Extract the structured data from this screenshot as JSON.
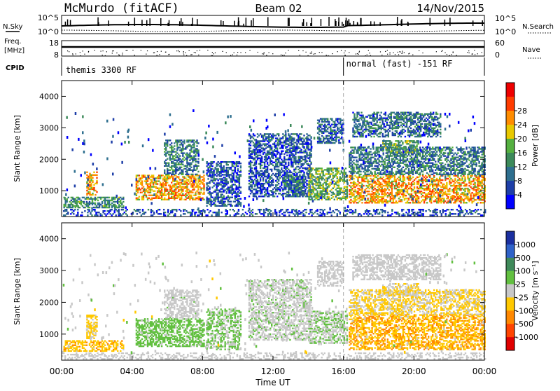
{
  "header": {
    "station": "McMurdo (fitACF)",
    "beam": "Beam 02",
    "date": "14/Nov/2015"
  },
  "top_panels": {
    "n_sky_label": "N.Sky",
    "n_search_label": "N.Search",
    "n_ticks": [
      "10^5",
      "10^0"
    ],
    "n_ticks_right": [
      "10^5",
      "10^0"
    ],
    "freq_label_1": "Freq.",
    "freq_label_2": "[MHz]",
    "freq_ticks": [
      "18",
      "8"
    ],
    "nave_label": "Nave",
    "nave_ticks": [
      "60",
      "0"
    ],
    "cpid_label": "CPID",
    "cpid_modes": [
      {
        "name": "themis 3300 RF",
        "start_hour": 0
      },
      {
        "name": "normal (fast) -151 RF",
        "start_hour": 16
      }
    ]
  },
  "x_axis": {
    "label": "Time UT",
    "ticks": [
      "00:00",
      "04:00",
      "08:00",
      "12:00",
      "16:00",
      "20:00",
      "00:00"
    ],
    "range_hours": [
      0,
      24
    ],
    "mode_change_hour": 16
  },
  "chart_data": [
    {
      "type": "heatmap",
      "name": "power",
      "ylabel": "Slant Range [km]",
      "yticks": [
        "1000",
        "2000",
        "3000",
        "4000"
      ],
      "ylim": [
        180,
        4500
      ],
      "colorbar_label": "Power [dB]",
      "colorbar_ticks": [
        "4",
        "8",
        "12",
        "16",
        "20",
        "24",
        "28"
      ],
      "colorbar_colors": [
        "#0000ff",
        "#1e3fa8",
        "#2e6f8f",
        "#3c8a5a",
        "#55b040",
        "#e8c800",
        "#ff8c00",
        "#ff3c00",
        "#ee0000"
      ],
      "colorbar_range": [
        0,
        32
      ],
      "regions": [
        {
          "t0": 0.1,
          "t1": 3.5,
          "r0": 450,
          "r1": 800,
          "level": 12
        },
        {
          "t0": 1.4,
          "t1": 2.0,
          "r0": 850,
          "r1": 1600,
          "level": 22
        },
        {
          "t0": 4.2,
          "t1": 8.1,
          "r0": 700,
          "r1": 1500,
          "level": 22
        },
        {
          "t0": 5.8,
          "t1": 7.8,
          "r0": 1500,
          "r1": 2600,
          "level": 10
        },
        {
          "t0": 8.2,
          "t1": 10.2,
          "r0": 500,
          "r1": 1900,
          "level": 7
        },
        {
          "t0": 10.6,
          "t1": 14.2,
          "r0": 800,
          "r1": 2800,
          "level": 7
        },
        {
          "t0": 12.6,
          "t1": 13.8,
          "r0": 800,
          "r1": 1500,
          "level": 10
        },
        {
          "t0": 14.0,
          "t1": 16.2,
          "r0": 700,
          "r1": 1700,
          "level": 15
        },
        {
          "t0": 14.5,
          "t1": 16.0,
          "r0": 2500,
          "r1": 3300,
          "level": 8
        },
        {
          "t0": 16.3,
          "t1": 24.0,
          "r0": 600,
          "r1": 1500,
          "level": 22
        },
        {
          "t0": 16.3,
          "t1": 24.0,
          "r0": 1500,
          "r1": 2400,
          "level": 10
        },
        {
          "t0": 18.2,
          "t1": 20.2,
          "r0": 2200,
          "r1": 2600,
          "level": 14
        },
        {
          "t0": 16.5,
          "t1": 21.5,
          "r0": 2700,
          "r1": 3500,
          "level": 9
        },
        {
          "t0": 0.0,
          "t1": 24.0,
          "r0": 200,
          "r1": 420,
          "level": 6
        }
      ]
    },
    {
      "type": "heatmap",
      "name": "velocity",
      "ylabel": "Slant Range [km]",
      "yticks": [
        "1000",
        "2000",
        "3000",
        "4000"
      ],
      "ylim": [
        180,
        4500
      ],
      "colorbar_label": "Velocity [m s⁻¹]",
      "colorbar_ticks": [
        "1000",
        "500",
        "100",
        "25",
        "-25",
        "-100",
        "-500",
        "-1000"
      ],
      "colorbar_colors": [
        "#1b2fa0",
        "#2f62c8",
        "#3f8a5a",
        "#62c040",
        "#c8c8c8",
        "#ffc800",
        "#ff8800",
        "#ff4400",
        "#e00000"
      ],
      "colorbar_range": [
        -1200,
        1200
      ],
      "regions": [
        {
          "t0": 0.1,
          "t1": 3.5,
          "r0": 450,
          "r1": 800,
          "level": -300
        },
        {
          "t0": 1.4,
          "t1": 2.0,
          "r0": 850,
          "r1": 1600,
          "level": -200
        },
        {
          "t0": 4.2,
          "t1": 8.1,
          "r0": 600,
          "r1": 1500,
          "level": 250
        },
        {
          "t0": 5.8,
          "t1": 7.8,
          "r0": 1500,
          "r1": 2400,
          "level": 60
        },
        {
          "t0": 8.2,
          "t1": 10.2,
          "r0": 500,
          "r1": 1800,
          "level": 150
        },
        {
          "t0": 10.6,
          "t1": 14.2,
          "r0": 800,
          "r1": 2700,
          "level": 80
        },
        {
          "t0": 14.0,
          "t1": 16.2,
          "r0": 700,
          "r1": 1700,
          "level": 120
        },
        {
          "t0": 14.5,
          "t1": 16.0,
          "r0": 2500,
          "r1": 3300,
          "level": 0
        },
        {
          "t0": 16.3,
          "t1": 24.0,
          "r0": 500,
          "r1": 1600,
          "level": -350
        },
        {
          "t0": 16.3,
          "t1": 24.0,
          "r0": 1600,
          "r1": 2400,
          "level": -150
        },
        {
          "t0": 18.2,
          "t1": 20.2,
          "r0": 2200,
          "r1": 2600,
          "level": -120
        },
        {
          "t0": 16.5,
          "t1": 21.5,
          "r0": 2700,
          "r1": 3500,
          "level": 0
        },
        {
          "t0": 0.0,
          "t1": 24.0,
          "r0": 200,
          "r1": 420,
          "level": 0
        }
      ]
    }
  ]
}
